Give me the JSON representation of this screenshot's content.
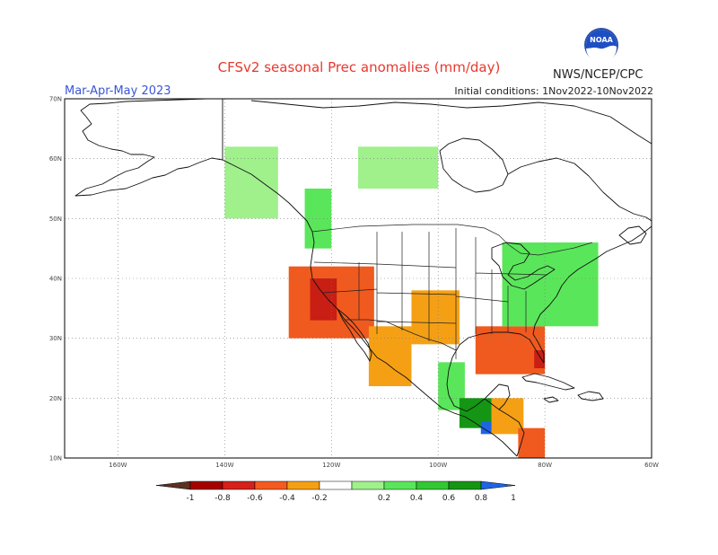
{
  "header": {
    "title": "CFSv2 seasonal Prec anomalies (mm/day)",
    "season": "Mar-Apr-May 2023",
    "initial_conditions": "Initial conditions: 1Nov2022-10Nov2022",
    "agency": "NWS/NCEP/CPC",
    "logo_text": "NOAA"
  },
  "axes": {
    "lat_labels": [
      "70N",
      "60N",
      "50N",
      "40N",
      "30N",
      "20N",
      "10N"
    ],
    "lon_labels": [
      "160W",
      "140W",
      "120W",
      "100W",
      "80W",
      "60W"
    ],
    "lat_values": [
      70,
      60,
      50,
      40,
      30,
      20,
      10
    ],
    "lon_values": [
      -160,
      -140,
      -120,
      -100,
      -80,
      -60
    ],
    "lon_range": [
      -170,
      -60
    ],
    "lat_range": [
      10,
      70
    ],
    "grid": true
  },
  "colorbar": {
    "labels": [
      "-1",
      "-0.8",
      "-0.6",
      "-0.4",
      "-0.2",
      "0.2",
      "0.4",
      "0.6",
      "0.8",
      "1"
    ],
    "colors": [
      "#5a3222",
      "#a50000",
      "#d6201a",
      "#f55a1e",
      "#f5a014",
      "#ffffff",
      "#a0f08c",
      "#5ae65a",
      "#32c832",
      "#149614",
      "#1e64e6"
    ]
  },
  "colors": {
    "dry_strong": "#c81e14",
    "dry_moderate": "#f05a1e",
    "dry_weak": "#f5a014",
    "wet_weak": "#a0f08c",
    "wet_moderate": "#5ae65a",
    "wet_strong": "#149614",
    "wet_extreme": "#1e64e6"
  },
  "chart_data": {
    "type": "heatmap",
    "title": "CFSv2 seasonal Prec anomalies (mm/day)",
    "season": "Mar-Apr-May 2023",
    "units": "mm/day",
    "color_scale": [
      -1,
      -0.8,
      -0.6,
      -0.4,
      -0.2,
      0.2,
      0.4,
      0.6,
      0.8,
      1
    ],
    "regions": [
      {
        "lon": [
          -128,
          -112
        ],
        "lat": [
          30,
          42
        ],
        "value": -0.5
      },
      {
        "lon": [
          -124,
          -119
        ],
        "lat": [
          33,
          40
        ],
        "value": -0.8
      },
      {
        "lon": [
          -113,
          -105
        ],
        "lat": [
          22,
          32
        ],
        "value": -0.3
      },
      {
        "lon": [
          -105,
          -96
        ],
        "lat": [
          29,
          38
        ],
        "value": -0.3
      },
      {
        "lon": [
          -93,
          -80
        ],
        "lat": [
          24,
          32
        ],
        "value": -0.4
      },
      {
        "lon": [
          -82,
          -80
        ],
        "lat": [
          25,
          28
        ],
        "value": -0.8
      },
      {
        "lon": [
          -90,
          -84
        ],
        "lat": [
          14,
          20
        ],
        "value": -0.3
      },
      {
        "lon": [
          -85,
          -80
        ],
        "lat": [
          10,
          15
        ],
        "value": -0.5
      },
      {
        "lon": [
          -140,
          -130
        ],
        "lat": [
          50,
          62
        ],
        "value": 0.2
      },
      {
        "lon": [
          -125,
          -120
        ],
        "lat": [
          45,
          55
        ],
        "value": 0.3
      },
      {
        "lon": [
          -115,
          -100
        ],
        "lat": [
          55,
          62
        ],
        "value": 0.2
      },
      {
        "lon": [
          -88,
          -70
        ],
        "lat": [
          32,
          46
        ],
        "value": 0.3
      },
      {
        "lon": [
          -100,
          -95
        ],
        "lat": [
          18,
          26
        ],
        "value": 0.3
      },
      {
        "lon": [
          -96,
          -90
        ],
        "lat": [
          15,
          20
        ],
        "value": 0.5
      },
      {
        "lon": [
          -92,
          -90
        ],
        "lat": [
          14,
          16
        ],
        "value": 1.0
      }
    ]
  }
}
